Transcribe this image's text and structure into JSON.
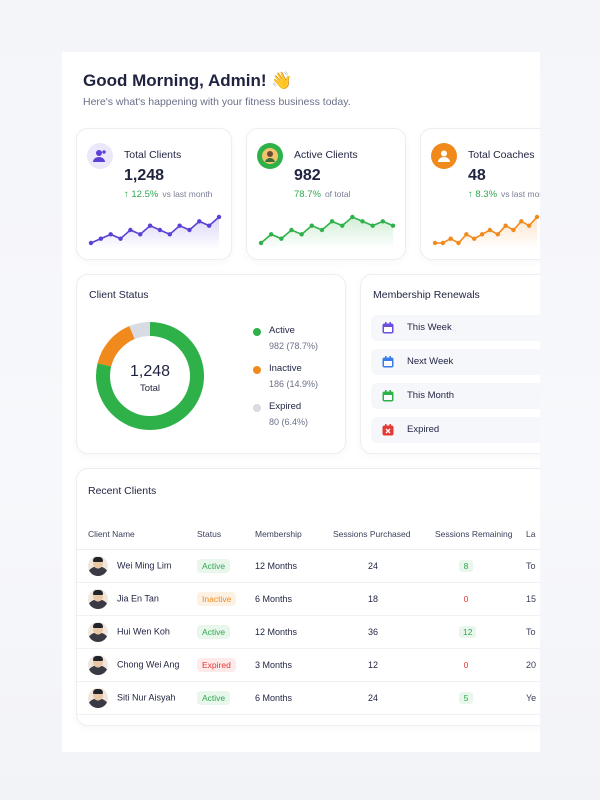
{
  "greeting": {
    "title": "Good Morning, Admin! 👋",
    "subtitle": "Here's what's happening with your fitness business today."
  },
  "stats": [
    {
      "label": "Total Clients",
      "value": "1,248",
      "change": "↑ 12.5%",
      "change_note": "vs last month",
      "color": "#5b3fd6",
      "icon": "user-plus-icon",
      "trend": [
        3,
        4,
        5,
        4,
        6,
        5,
        7,
        6,
        5,
        7,
        6,
        8,
        7,
        9
      ]
    },
    {
      "label": "Active Clients",
      "value": "982",
      "change": "78.7%",
      "change_note": "of total",
      "color": "#2fb14a",
      "icon": "avatar-icon",
      "trend": [
        2,
        4,
        3,
        5,
        4,
        6,
        5,
        7,
        6,
        8,
        7,
        6,
        7,
        6
      ]
    },
    {
      "label": "Total Coaches",
      "value": "48",
      "change": "↑ 8.3%",
      "change_note": "vs last month",
      "color": "#f08a1c",
      "icon": "user-icon",
      "trend": [
        3,
        3,
        4,
        3,
        5,
        4,
        5,
        6,
        5,
        7,
        6,
        8,
        7,
        9
      ]
    }
  ],
  "client_status": {
    "title": "Client Status",
    "center_value": "1,248",
    "center_label": "Total",
    "segments": [
      {
        "name": "Active",
        "detail": "982 (78.7%)",
        "value": 78.7,
        "color": "#2fb14a"
      },
      {
        "name": "Inactive",
        "detail": "186 (14.9%)",
        "value": 14.9,
        "color": "#f08a1c"
      },
      {
        "name": "Expired",
        "detail": "80 (6.4%)",
        "value": 6.4,
        "color": "#d9dbe3"
      }
    ]
  },
  "renewals": {
    "title": "Membership Renewals",
    "items": [
      {
        "label": "This Week",
        "icon": "calendar-icon",
        "color": "#6b4fe0"
      },
      {
        "label": "Next Week",
        "icon": "calendar-icon",
        "color": "#3b7de8"
      },
      {
        "label": "This Month",
        "icon": "calendar-icon",
        "color": "#2fb14a"
      },
      {
        "label": "Expired",
        "icon": "calendar-x-icon",
        "color": "#e53935"
      }
    ]
  },
  "recent": {
    "title": "Recent Clients",
    "columns": [
      "Client Name",
      "Status",
      "Membership",
      "Sessions Purchased",
      "Sessions Remaining",
      "La"
    ],
    "rows": [
      {
        "name": "Wei Ming Lim",
        "status": "Active",
        "membership": "12 Months",
        "purchased": "24",
        "remaining": "8",
        "last": "To"
      },
      {
        "name": "Jia En Tan",
        "status": "Inactive",
        "membership": "6 Months",
        "purchased": "18",
        "remaining": "0",
        "last": "15"
      },
      {
        "name": "Hui Wen Koh",
        "status": "Active",
        "membership": "12 Months",
        "purchased": "36",
        "remaining": "12",
        "last": "To"
      },
      {
        "name": "Chong Wei Ang",
        "status": "Expired",
        "membership": "3 Months",
        "purchased": "12",
        "remaining": "0",
        "last": "20"
      },
      {
        "name": "Siti Nur Aisyah",
        "status": "Active",
        "membership": "6 Months",
        "purchased": "24",
        "remaining": "5",
        "last": "Ye"
      }
    ]
  },
  "status_colors": {
    "Active": {
      "fg": "#2fa84f",
      "bg": "#e8f6ec"
    },
    "Inactive": {
      "fg": "#f08a1c",
      "bg": "#fdf1e4"
    },
    "Expired": {
      "fg": "#e53935",
      "bg": "#fdebeb"
    }
  }
}
